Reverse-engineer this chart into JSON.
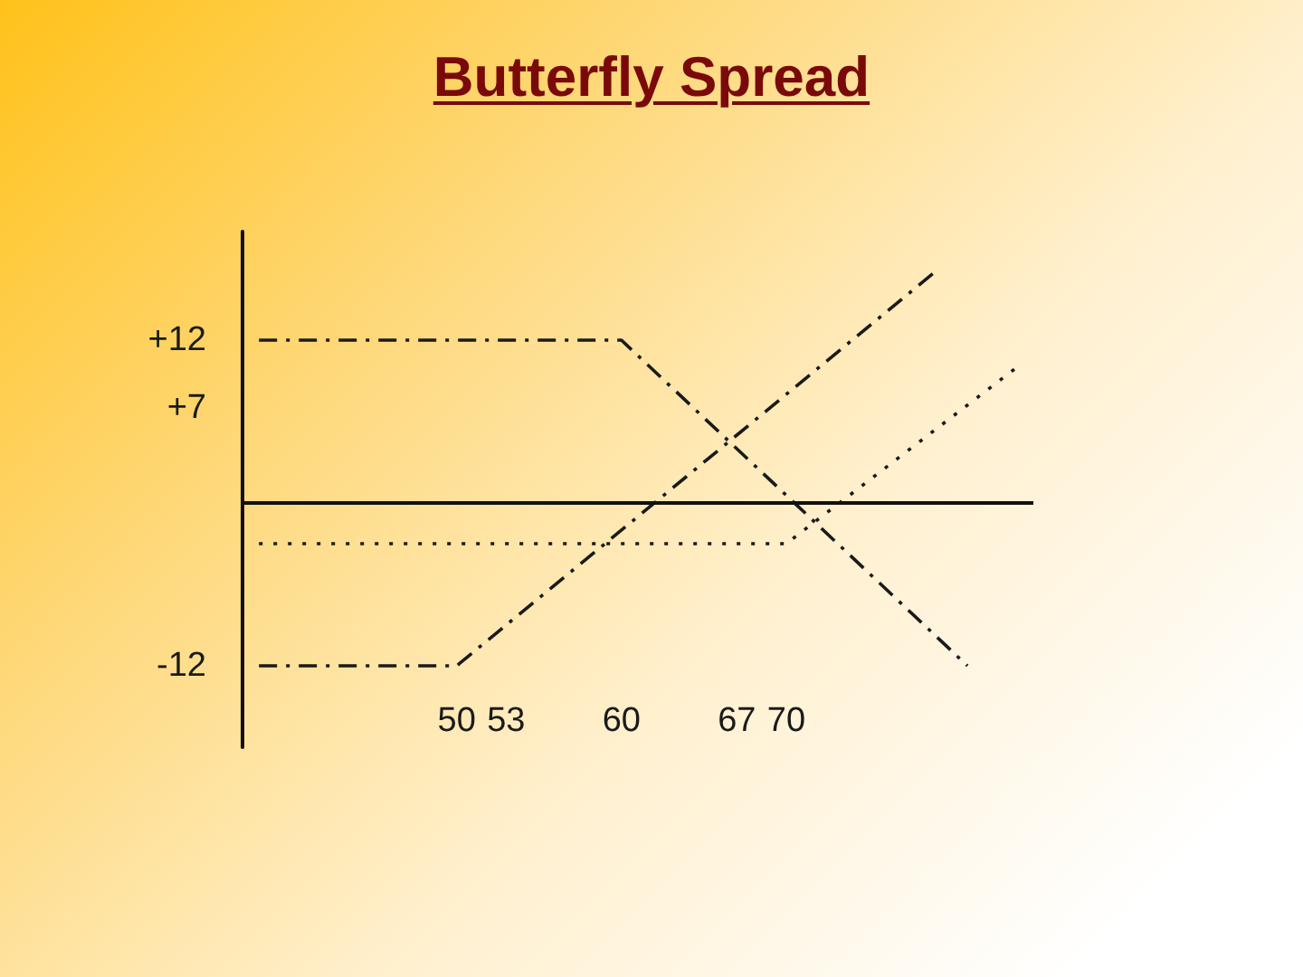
{
  "chart_data": {
    "type": "line",
    "title": "Butterfly Spread",
    "xlim": [
      37,
      85
    ],
    "xticks": [
      50,
      53,
      60,
      67,
      70
    ],
    "ylim": [
      -18,
      20
    ],
    "yticks": [
      {
        "value": 12,
        "label": "+12"
      },
      {
        "value": 7,
        "label": "+7"
      },
      -12
    ],
    "marker": "none",
    "ref_lines": [
      {
        "axis": "y",
        "value": 0,
        "color": "#111111",
        "line_style": "solid"
      }
    ],
    "series": [
      {
        "color": "#1a1a1a",
        "line_style": "dashdot",
        "x": [
          38,
          60,
          81
        ],
        "values": [
          12,
          12,
          -12
        ]
      },
      {
        "color": "#1a1a1a",
        "line_style": "dashdot",
        "x": [
          38,
          50,
          79
        ],
        "values": [
          -12,
          -12,
          17
        ]
      },
      {
        "color": "#1a1a1a",
        "line_style": "dotted",
        "x": [
          38,
          70,
          84
        ],
        "values": [
          -3,
          -3,
          10
        ]
      }
    ]
  }
}
